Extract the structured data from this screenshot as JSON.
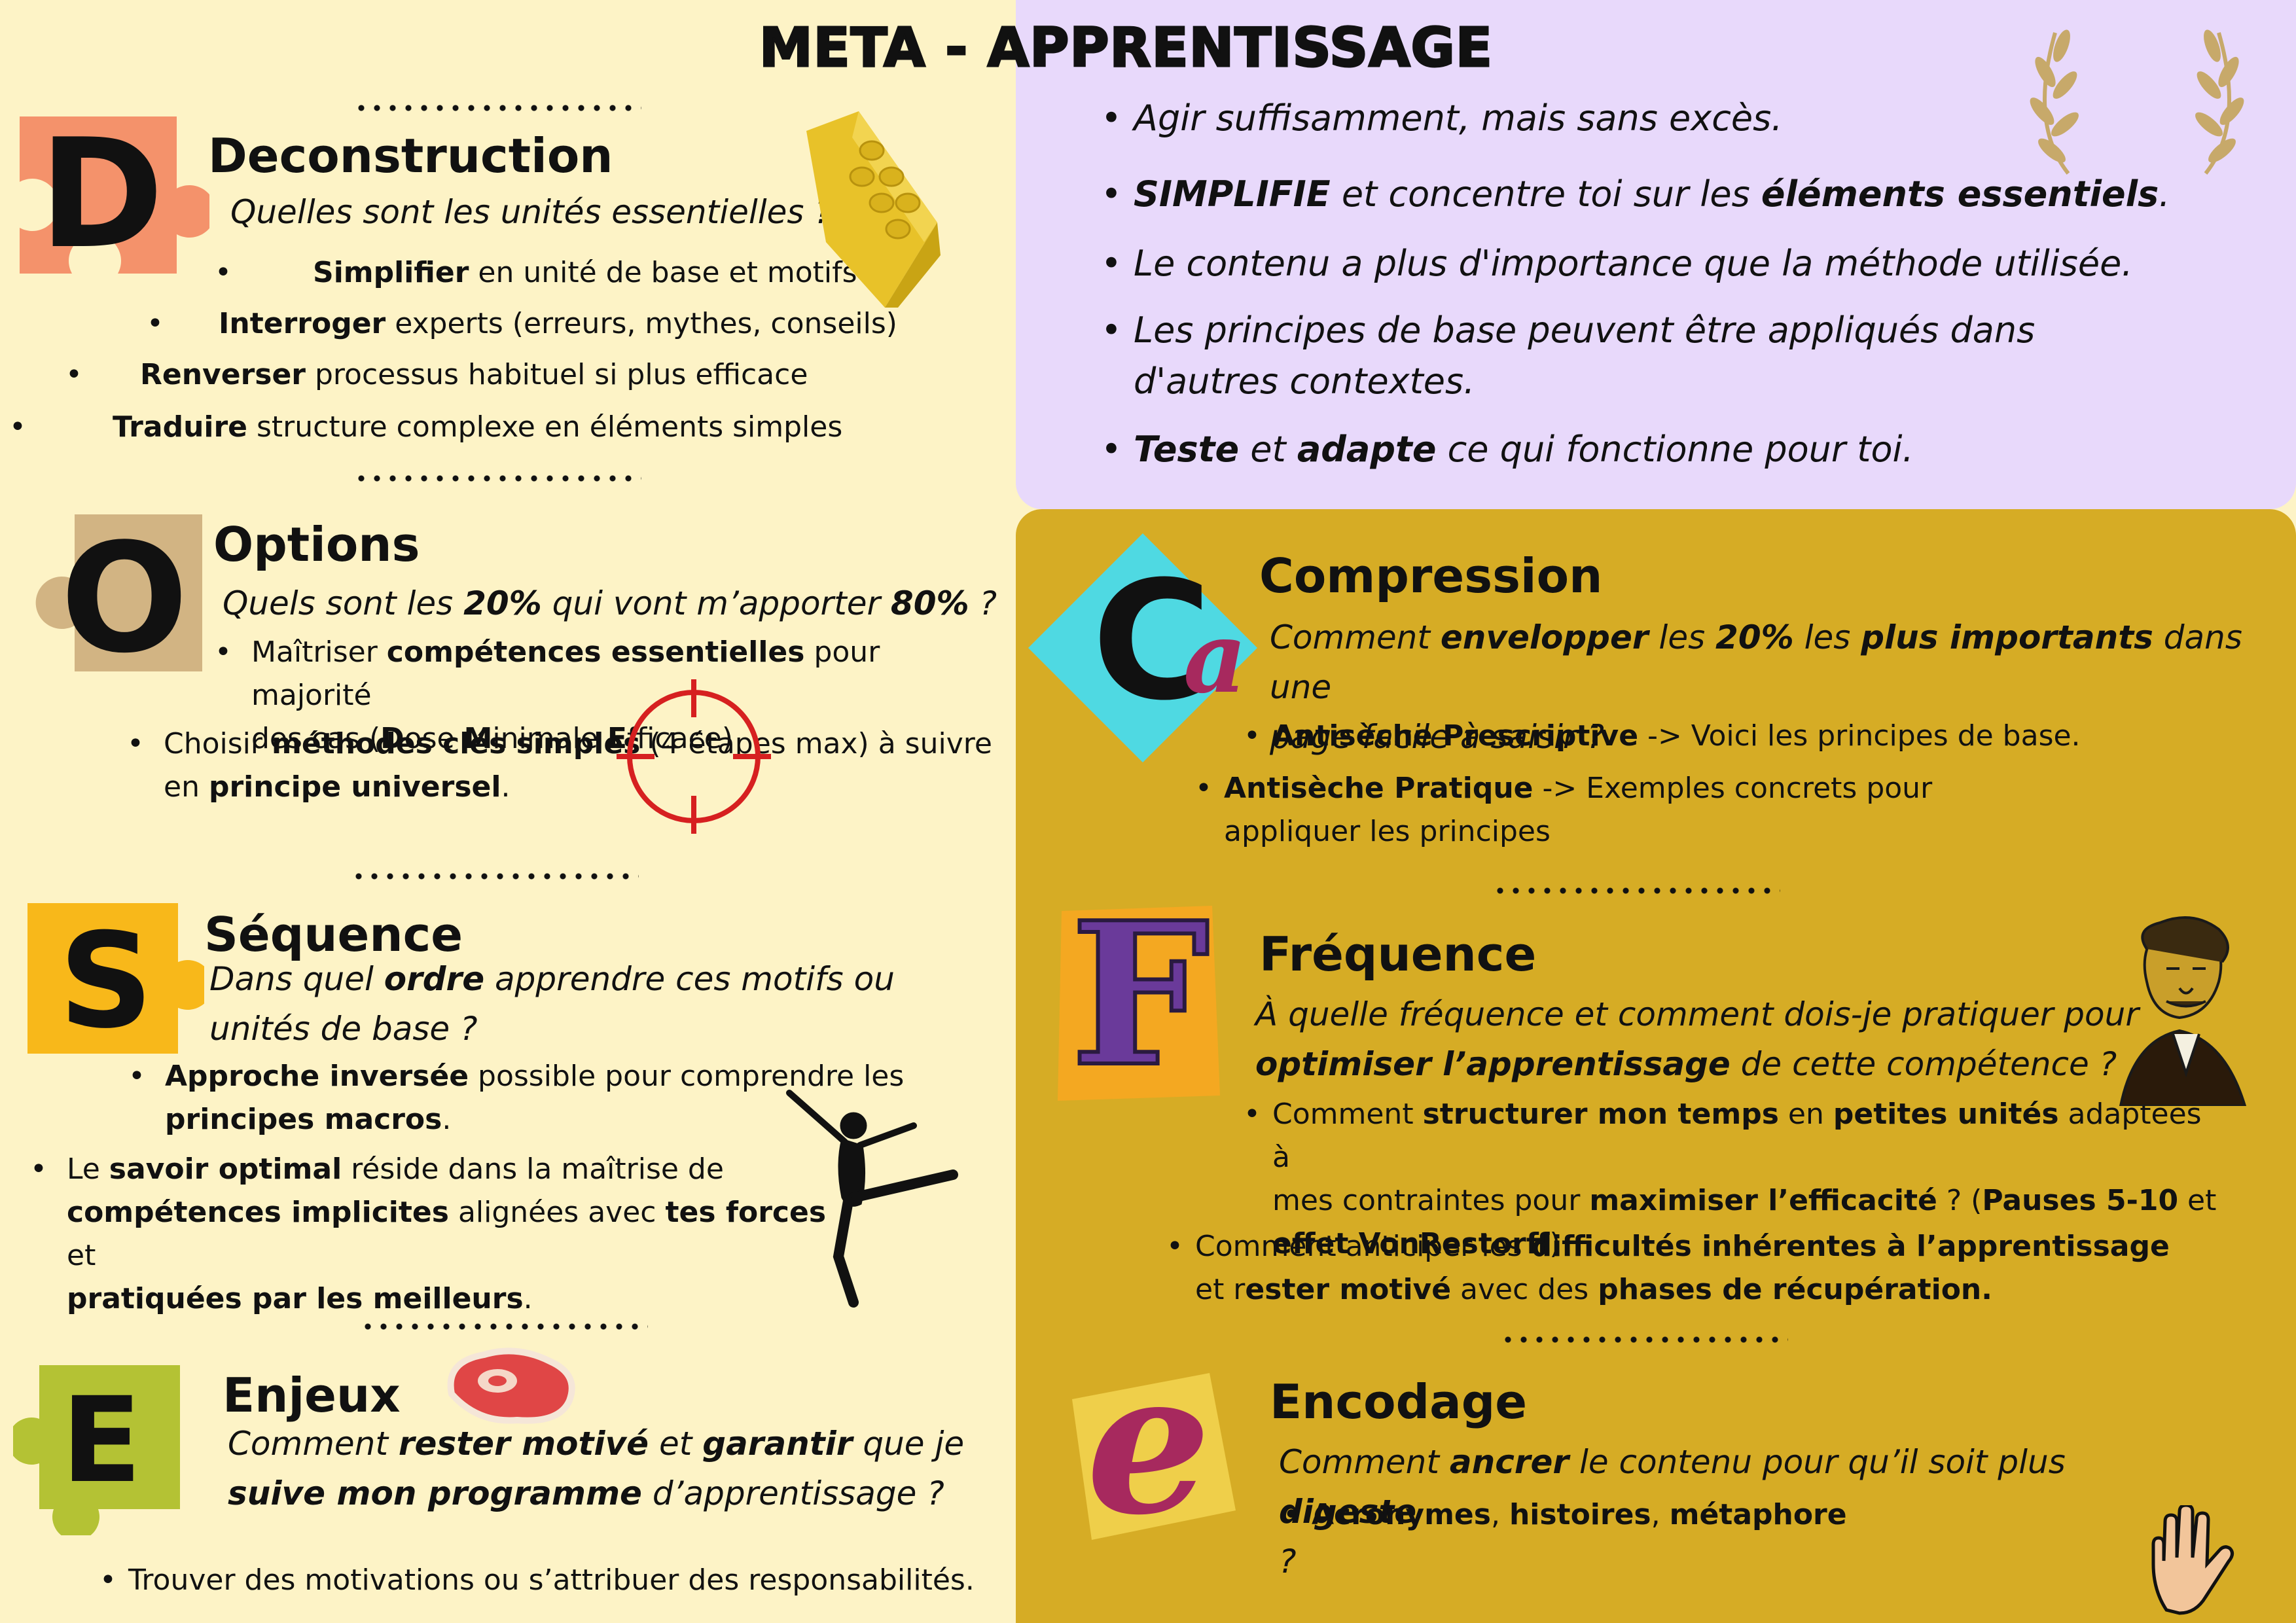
{
  "title": "META - APPRENTISSAGE",
  "colors": {
    "left_bg": "#fdf3c6",
    "top_right_bg": "#e8d9fb",
    "bottom_right_bg": "#d6ac25",
    "puzzle_d": "#f4926b",
    "puzzle_o": "#d2b483",
    "puzzle_s": "#f8b81a",
    "puzzle_e": "#b4c234",
    "diamond_c": "#4fd9e2",
    "letter_a": "#a7295e",
    "target_red": "#d62020"
  },
  "deconstruction": {
    "letter": "D",
    "title": "Deconstruction",
    "question": "Quelles sont les unités essentielles ?",
    "bullets": [
      {
        "bold": "Simplifier",
        "text": " en unité de base et motifs"
      },
      {
        "bold": "Interroger",
        "text": "  experts (erreurs, mythes, conseils)"
      },
      {
        "bold": "Renverser",
        "text": "  processus habituel si plus efficace"
      },
      {
        "bold": "Traduire",
        "text": "  structure complexe en éléments simples"
      }
    ]
  },
  "options": {
    "letter": "O",
    "title": "Options",
    "question": {
      "p1": "Quels sont les ",
      "b1": "20%",
      "p2": " qui vont m’apporter ",
      "b2": "80%",
      "p3": "  ?"
    },
    "bullet1": {
      "p1": "Maîtriser ",
      "b1": "compétences essentielles",
      "p2": " pour majorité",
      "p3": "des cas (",
      "b2": "D",
      "p4": "ose ",
      "b3": "M",
      "p5": "inimale ",
      "b4": "E",
      "p6": "fficace)"
    },
    "bullet2": {
      "p1": "Choisir ",
      "b1": "méthodes clés  simples",
      "p2": " (4 étapes max) à suivre",
      "p3": "en ",
      "b2": "principe universel",
      "p4": "."
    }
  },
  "sequence": {
    "letter": "S",
    "title": "Séquence",
    "question": {
      "p1": "Dans quel ",
      "b1": "ordre",
      "p2": " apprendre ces motifs ou",
      "p3": "unités de base ?"
    },
    "bullet1": {
      "b1": "Approche inversée",
      "p1": " possible pour comprendre les",
      "b2": "principes macros",
      "p2": "."
    },
    "bullet2": {
      "p1": "Le ",
      "b1": "savoir optimal",
      "p2": " réside dans la maîtrise de",
      "b2": "compétences implicites",
      "p3": " alignées avec ",
      "b3": "tes forces",
      "p4": " et",
      "b4": "pratiquées par les meilleurs",
      "p5": "."
    }
  },
  "enjeux": {
    "letter": "E",
    "title": "Enjeux",
    "question": {
      "p1": "Comment ",
      "b1": "rester motivé",
      "p2": " et ",
      "b2": "garantir",
      "p3": " que je",
      "b3": "suive  mon programme",
      "p4": " d’apprentissage ?"
    },
    "bullet": "Trouver des motivations ou s’attribuer des responsabilités."
  },
  "principles": [
    {
      "html_parts": [
        {
          "t": "Agir suffisamment, mais sans excès.",
          "b": false
        }
      ]
    },
    {
      "html_parts": [
        {
          "t": "SIMPLIFIE",
          "b": true
        },
        {
          "t": " et concentre toi sur les ",
          "b": false
        },
        {
          "t": "éléments essentiels",
          "b": true
        },
        {
          "t": ".",
          "b": false
        }
      ]
    },
    {
      "html_parts": [
        {
          "t": "Le contenu a plus d'importance que la méthode utilisée.",
          "b": false
        }
      ]
    },
    {
      "html_parts": [
        {
          "t": "Les principes de base peuvent être appliqués dans d'autres contextes.",
          "b": false
        }
      ]
    },
    {
      "html_parts": [
        {
          "t": "Teste",
          "b": true
        },
        {
          "t": " et ",
          "b": false
        },
        {
          "t": "adapte",
          "b": true
        },
        {
          "t": " ce qui fonctionne pour toi.",
          "b": false
        }
      ]
    }
  ],
  "compression": {
    "letter": "C",
    "letter2": "a",
    "title": "Compression",
    "question": {
      "p1": "Comment ",
      "b1": "envelopper",
      "p2": " les ",
      "b2": "20%",
      "p3": " les ",
      "b3": "plus importants",
      "p4": " dans une",
      "p5": "page facile à saisir ?"
    },
    "bullet1": {
      "b1": "Antisèche Prescriptive",
      "p1": " -> Voici les principes de base."
    },
    "bullet2": {
      "b1": "Antisèche Pratique",
      "p1": " -> Exemples concrets pour",
      "p2": "appliquer les principes"
    }
  },
  "frequence": {
    "letter": "F",
    "title": "Fréquence",
    "question": {
      "p1": "À quelle fréquence et comment dois-je pratiquer pour",
      "b1": "optimiser l’apprentissage",
      "p2": " de cette compétence ?"
    },
    "bullet1": {
      "p1": "Comment ",
      "b1": "structurer mon temps",
      "p2": " en ",
      "b2": "petites unités",
      "p3": " adaptées à",
      "p4": "mes contraintes pour ",
      "b3": "maximiser l’efficacité",
      "p5": " ? (",
      "b4": "Pauses 5-10",
      "p6": " et",
      "b5": "effet VonRestorff",
      "p7": ")"
    },
    "bullet2": {
      "p1": "Comment anticiper les ",
      "b1": "difficultés inhérentes à l’apprentissage",
      "p2": "et r",
      "b2": "ester motivé",
      "p3": " avec des ",
      "b3": "phases de récupération."
    }
  },
  "encodage": {
    "letter": "e",
    "title": "Encodage",
    "question": {
      "p1": "Comment ",
      "b1": "ancrer",
      "p2": " le contenu pour qu’il soit plus ",
      "b2": "digeste",
      "p3": "?"
    },
    "bullet": {
      "b1": "Acronymes",
      "p1": ", ",
      "b2": "histoires",
      "p2": ", ",
      "b3": "métaphore"
    }
  },
  "icons": [
    "lego-brick-icon",
    "target-icon",
    "dancer-icon",
    "steak-icon",
    "laurel-icon",
    "portrait-icon",
    "hand-icon"
  ]
}
